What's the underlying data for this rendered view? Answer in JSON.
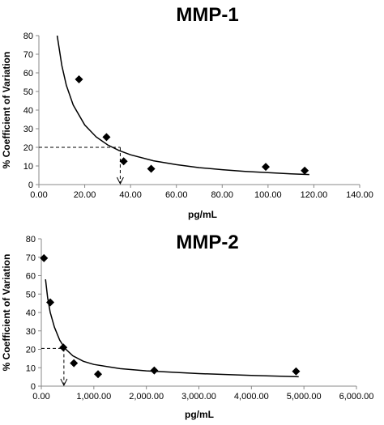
{
  "chart_data": [
    {
      "type": "scatter",
      "title": "MMP-1",
      "xlabel": "pg/mL",
      "ylabel": "% Coefficient of Variation",
      "xlim": [
        0,
        140
      ],
      "ylim": [
        0,
        80
      ],
      "x_ticks": [
        "0.00",
        "20.00",
        "40.00",
        "60.00",
        "80.00",
        "100.00",
        "120.00",
        "140.00"
      ],
      "y_ticks": [
        "0",
        "10",
        "20",
        "30",
        "40",
        "50",
        "60",
        "70",
        "80"
      ],
      "grid": false,
      "marker_color": "#000000",
      "points": [
        {
          "x": 17.5,
          "y": 56.5
        },
        {
          "x": 29.5,
          "y": 25.5
        },
        {
          "x": 37.0,
          "y": 12.5
        },
        {
          "x": 49.0,
          "y": 8.5
        },
        {
          "x": 99.0,
          "y": 9.5
        },
        {
          "x": 116.0,
          "y": 7.5
        }
      ],
      "trendline": [
        {
          "x": 8,
          "y": 80
        },
        {
          "x": 10,
          "y": 64
        },
        {
          "x": 12,
          "y": 53.3
        },
        {
          "x": 15,
          "y": 42.7
        },
        {
          "x": 20,
          "y": 32
        },
        {
          "x": 25,
          "y": 25.6
        },
        {
          "x": 30,
          "y": 21.3
        },
        {
          "x": 35,
          "y": 18.3
        },
        {
          "x": 40,
          "y": 16
        },
        {
          "x": 50,
          "y": 12.8
        },
        {
          "x": 60,
          "y": 10.7
        },
        {
          "x": 70,
          "y": 9.1
        },
        {
          "x": 80,
          "y": 8
        },
        {
          "x": 90,
          "y": 7.1
        },
        {
          "x": 100,
          "y": 6.4
        },
        {
          "x": 110,
          "y": 5.8
        },
        {
          "x": 118,
          "y": 5.4
        }
      ],
      "reference_y": 20,
      "reference_x": 35.5
    },
    {
      "type": "scatter",
      "title": "MMP-2",
      "xlabel": "pg/mL",
      "ylabel": "% Coefficient of Variation",
      "xlim": [
        0,
        6000
      ],
      "ylim": [
        0,
        80
      ],
      "x_ticks": [
        "0.00",
        "1,000.00",
        "2,000.00",
        "3,000.00",
        "4,000.00",
        "5,000.00",
        "6,000.00"
      ],
      "y_ticks": [
        "0",
        "10",
        "20",
        "30",
        "40",
        "50",
        "60",
        "70",
        "80"
      ],
      "grid": false,
      "marker_color": "#000000",
      "points": [
        {
          "x": 50,
          "y": 69.5
        },
        {
          "x": 170,
          "y": 45.5
        },
        {
          "x": 420,
          "y": 21
        },
        {
          "x": 620,
          "y": 12.5
        },
        {
          "x": 1080,
          "y": 6.5
        },
        {
          "x": 2150,
          "y": 8.5
        },
        {
          "x": 4850,
          "y": 8
        }
      ],
      "trendline": [
        {
          "x": 80,
          "y": 58
        },
        {
          "x": 120,
          "y": 48
        },
        {
          "x": 170,
          "y": 40
        },
        {
          "x": 250,
          "y": 32
        },
        {
          "x": 350,
          "y": 25
        },
        {
          "x": 450,
          "y": 20.5
        },
        {
          "x": 600,
          "y": 16.5
        },
        {
          "x": 800,
          "y": 13.5
        },
        {
          "x": 1000,
          "y": 11.8
        },
        {
          "x": 1500,
          "y": 9.5
        },
        {
          "x": 2000,
          "y": 8.3
        },
        {
          "x": 3000,
          "y": 6.8
        },
        {
          "x": 4000,
          "y": 5.8
        },
        {
          "x": 4900,
          "y": 5.1
        }
      ],
      "reference_y": 20.5,
      "reference_x": 430
    }
  ]
}
